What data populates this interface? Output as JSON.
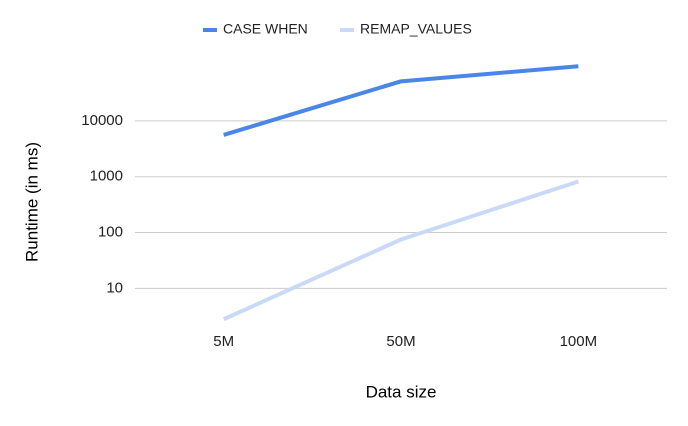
{
  "chart_data": {
    "type": "line",
    "x_label": "Data size",
    "y_label": "Runtime (in ms)",
    "categories": [
      "5M",
      "50M",
      "100M"
    ],
    "series": [
      {
        "name": "CASE WHEN",
        "color": "#4a86e8",
        "values": [
          5600,
          51000,
          95000
        ]
      },
      {
        "name": "REMAP_VALUES",
        "color": "#c9daf8",
        "values": [
          2.8,
          75,
          820
        ]
      }
    ],
    "ylim": [
      2.5,
      100000
    ],
    "yticks": [
      10,
      100,
      1000,
      10000
    ],
    "log_scale_y": true,
    "grid": true,
    "legend_position": "top"
  }
}
